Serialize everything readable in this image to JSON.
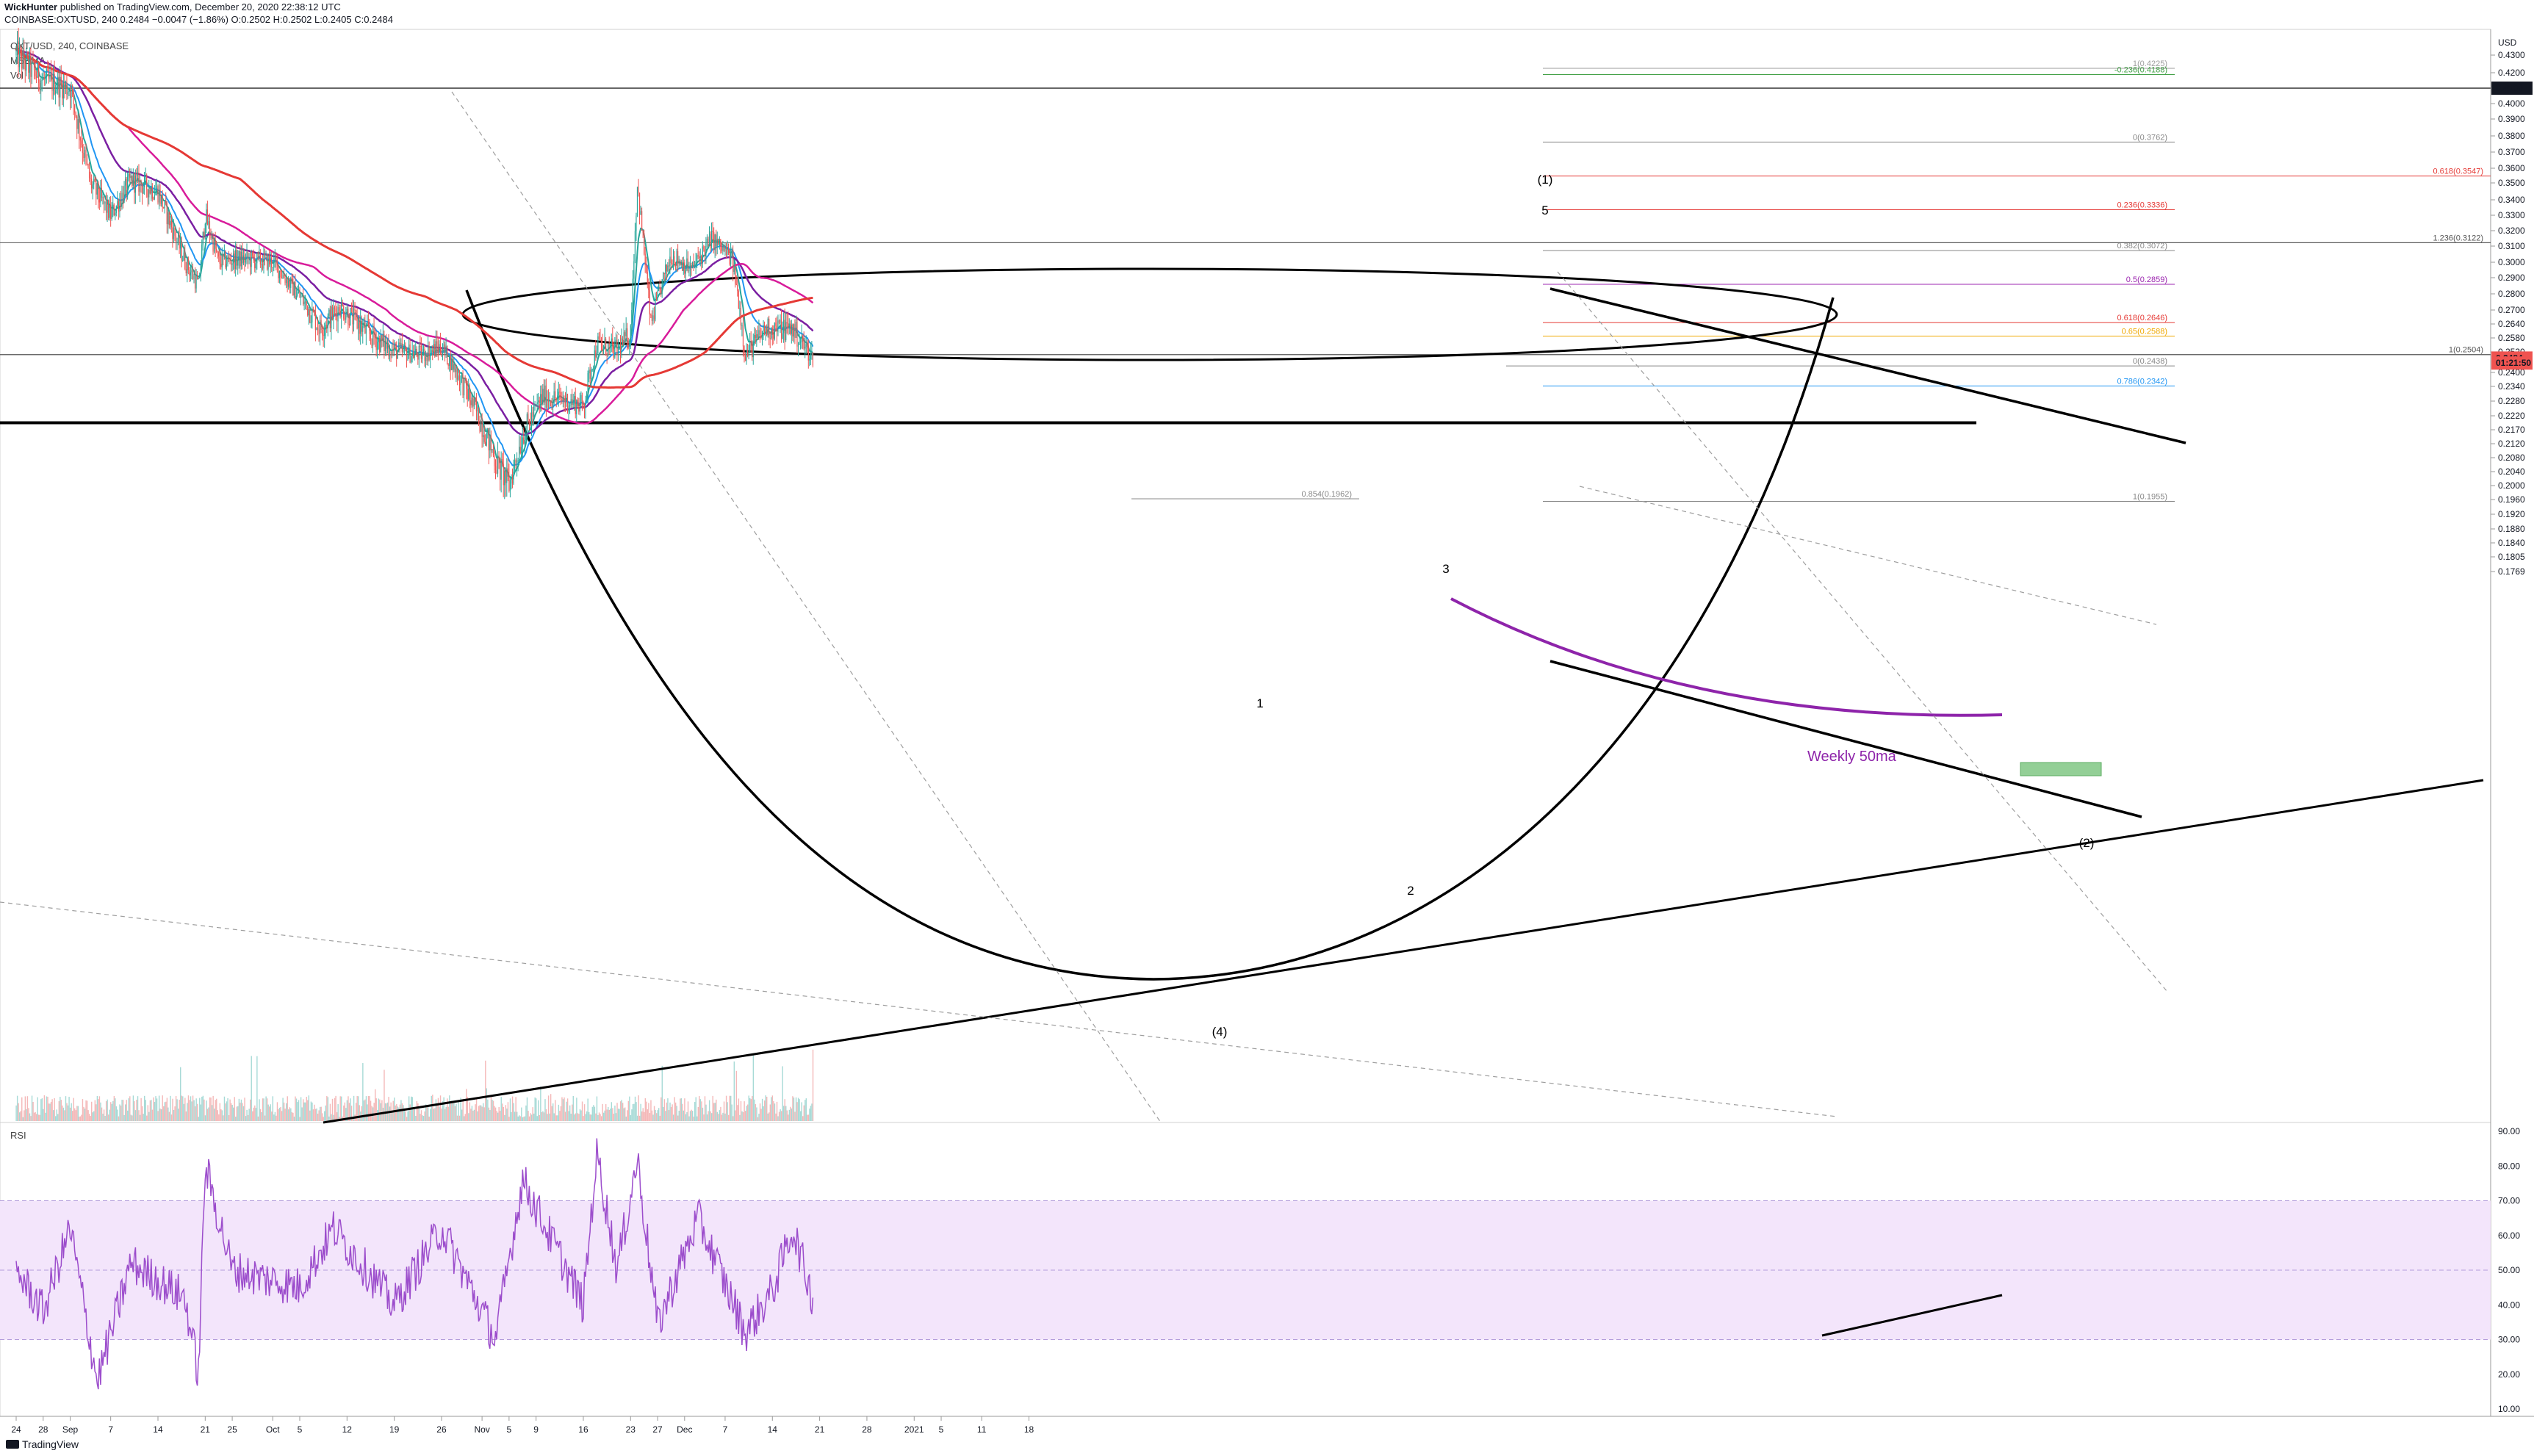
{
  "header": {
    "publisher": "WickHunter",
    "published_text": "published on TradingView.com, December 20, 2020 22:38:12 UTC",
    "symbol_line": "COINBASE:OXTUSD, 240  0.2484  −0.0047 (−1.86%)  O:0.2502  H:0.2502  L:0.2405  C:0.2484",
    "legend_1": "OXT/USD, 240, COINBASE",
    "legend_2": "MSEMA",
    "legend_3": "Vol",
    "rsi_label": "RSI",
    "brand": "TradingView"
  },
  "colors": {
    "up": "#26a69a",
    "down": "#ef5350",
    "ema_fast": "#2196f3",
    "ema_slow": "#7b1fa2",
    "ma_red": "#e53935",
    "ma_magenta": "#d81b9a",
    "rsi": "#9c4dcc",
    "rsi_band": "#f3e5fb",
    "annotation_purple": "#8e24aa",
    "fib_red": "#e53935",
    "fib_orange": "#f0a800",
    "fib_purple": "#9c27b0",
    "fib_gray": "#888888",
    "fib_green": "#43a047",
    "fib_blue": "#2196f3"
  },
  "chart_data": [
    {
      "type": "candlestick",
      "title": "OXT/USD, 240, COINBASE",
      "price_axis_label": "USD",
      "price_ticks": [
        "0.4300",
        "0.4200",
        "0.4000",
        "0.3900",
        "0.3800",
        "0.3700",
        "0.3600",
        "0.3500",
        "0.3400",
        "0.3300",
        "0.3200",
        "0.3100",
        "0.3000",
        "0.2900",
        "0.2800",
        "0.2700",
        "0.2640",
        "0.2580",
        "0.2520",
        "0.2400",
        "0.2340",
        "0.2280",
        "0.2220",
        "0.2170",
        "0.2120",
        "0.2080",
        "0.2040",
        "0.2000",
        "0.1960",
        "0.1920",
        "0.1880",
        "0.1840",
        "0.1805",
        "0.1769"
      ],
      "price_ticks_numeric": [
        0.43,
        0.42,
        0.4,
        0.39,
        0.38,
        0.37,
        0.36,
        0.35,
        0.34,
        0.33,
        0.32,
        0.31,
        0.3,
        0.29,
        0.28,
        0.27,
        0.264,
        0.258,
        0.252,
        0.24,
        0.234,
        0.228,
        0.222,
        0.217,
        0.212,
        0.208,
        0.204,
        0.2,
        0.196,
        0.192,
        0.188,
        0.184,
        0.1805,
        0.1769
      ],
      "price_badges": [
        {
          "text": "0.4100",
          "value": 0.41,
          "style": "dark"
        },
        {
          "text": "0.2484",
          "value": 0.2484,
          "style": "red"
        },
        {
          "text": "01:21:50",
          "value": 0.2455,
          "style": "red"
        }
      ],
      "x_ticks": [
        "24",
        "28",
        "Sep",
        "7",
        "14",
        "21",
        "25",
        "Oct",
        "5",
        "12",
        "19",
        "26",
        "Nov",
        "5",
        "9",
        "16",
        "23",
        "27",
        "Dec",
        "7",
        "14",
        "21",
        "28",
        "2021",
        "5",
        "11",
        "18"
      ],
      "approx_close_path": [
        {
          "date": "2020-08-24",
          "close": 0.43
        },
        {
          "date": "2020-08-28",
          "close": 0.415
        },
        {
          "date": "2020-09-01",
          "close": 0.41
        },
        {
          "date": "2020-09-04",
          "close": 0.35
        },
        {
          "date": "2020-09-07",
          "close": 0.33
        },
        {
          "date": "2020-09-10",
          "close": 0.352
        },
        {
          "date": "2020-09-14",
          "close": 0.345
        },
        {
          "date": "2020-09-18",
          "close": 0.3
        },
        {
          "date": "2020-09-20",
          "close": 0.285
        },
        {
          "date": "2020-09-21",
          "close": 0.33
        },
        {
          "date": "2020-09-23",
          "close": 0.3
        },
        {
          "date": "2020-09-26",
          "close": 0.302
        },
        {
          "date": "2020-10-01",
          "close": 0.3
        },
        {
          "date": "2020-10-05",
          "close": 0.278
        },
        {
          "date": "2020-10-08",
          "close": 0.262
        },
        {
          "date": "2020-10-11",
          "close": 0.272
        },
        {
          "date": "2020-10-15",
          "close": 0.26
        },
        {
          "date": "2020-10-19",
          "close": 0.252
        },
        {
          "date": "2020-10-23",
          "close": 0.25
        },
        {
          "date": "2020-10-26",
          "close": 0.254
        },
        {
          "date": "2020-10-30",
          "close": 0.23
        },
        {
          "date": "2020-11-03",
          "close": 0.207
        },
        {
          "date": "2020-11-05",
          "close": 0.2
        },
        {
          "date": "2020-11-07",
          "close": 0.215
        },
        {
          "date": "2020-11-10",
          "close": 0.23
        },
        {
          "date": "2020-11-14",
          "close": 0.228
        },
        {
          "date": "2020-11-16",
          "close": 0.226
        },
        {
          "date": "2020-11-18",
          "close": 0.255
        },
        {
          "date": "2020-11-21",
          "close": 0.252
        },
        {
          "date": "2020-11-23",
          "close": 0.26
        },
        {
          "date": "2020-11-24",
          "close": 0.35
        },
        {
          "date": "2020-11-26",
          "close": 0.263
        },
        {
          "date": "2020-11-29",
          "close": 0.305
        },
        {
          "date": "2020-12-02",
          "close": 0.295
        },
        {
          "date": "2020-12-05",
          "close": 0.315
        },
        {
          "date": "2020-12-08",
          "close": 0.302
        },
        {
          "date": "2020-12-10",
          "close": 0.25
        },
        {
          "date": "2020-12-13",
          "close": 0.262
        },
        {
          "date": "2020-12-17",
          "close": 0.262
        },
        {
          "date": "2020-12-20",
          "close": 0.2484
        }
      ],
      "fib_levels": [
        {
          "label": "1(0.4225)",
          "value": 0.4225,
          "color": "#9e9e9e"
        },
        {
          "label": "-0.236(0.4188)",
          "value": 0.4188,
          "color": "#43a047"
        },
        {
          "label": "0(0.3762)",
          "value": 0.3762,
          "color": "#888888"
        },
        {
          "label": "0.618(0.3547)",
          "value": 0.3547,
          "color": "#e53935"
        },
        {
          "label": "0.236(0.3336)",
          "value": 0.3336,
          "color": "#e53935"
        },
        {
          "label": "1.236(0.3122)",
          "value": 0.3122,
          "color": "#555555"
        },
        {
          "label": "0.382(0.3072)",
          "value": 0.3072,
          "color": "#888888"
        },
        {
          "label": "0.5(0.2859)",
          "value": 0.2859,
          "color": "#9c27b0"
        },
        {
          "label": "0.618(0.2646)",
          "value": 0.2646,
          "color": "#e53935"
        },
        {
          "label": "0.65(0.2588)",
          "value": 0.2588,
          "color": "#f0a800"
        },
        {
          "label": "1(0.2504)",
          "value": 0.2504,
          "color": "#555555"
        },
        {
          "label": "0(0.2438)",
          "value": 0.2438,
          "color": "#888888"
        },
        {
          "label": "0.786(0.2342)",
          "value": 0.2342,
          "color": "#2196f3"
        },
        {
          "label": "0.854(0.1962)",
          "value": 0.1962,
          "color": "#888888"
        },
        {
          "label": "1(0.1955)",
          "value": 0.1955,
          "color": "#888888"
        }
      ],
      "annotations": {
        "wave_labels": [
          "1",
          "2",
          "3",
          "(1)",
          "5",
          "(2)",
          "(4)"
        ],
        "weekly_label": "Weekly 50ma",
        "horizontal_levels": [
          0.41,
          0.3122,
          0.2504,
          0.2195
        ]
      }
    },
    {
      "type": "line",
      "title": "RSI",
      "ticks": [
        "90.00",
        "80.00",
        "70.00",
        "60.00",
        "50.00",
        "40.00",
        "30.00",
        "20.00",
        "10.00"
      ],
      "band": [
        30,
        70
      ],
      "approx_values": [
        {
          "date": "2020-08-24",
          "rsi": 50
        },
        {
          "date": "2020-08-28",
          "rsi": 38
        },
        {
          "date": "2020-09-01",
          "rsi": 62
        },
        {
          "date": "2020-09-05",
          "rsi": 18
        },
        {
          "date": "2020-09-10",
          "rsi": 52
        },
        {
          "date": "2020-09-18",
          "rsi": 42
        },
        {
          "date": "2020-09-20",
          "rsi": 20
        },
        {
          "date": "2020-09-21",
          "rsi": 80
        },
        {
          "date": "2020-09-25",
          "rsi": 50
        },
        {
          "date": "2020-10-05",
          "rsi": 45
        },
        {
          "date": "2020-10-10",
          "rsi": 62
        },
        {
          "date": "2020-10-19",
          "rsi": 40
        },
        {
          "date": "2020-10-26",
          "rsi": 62
        },
        {
          "date": "2020-11-03",
          "rsi": 30
        },
        {
          "date": "2020-11-07",
          "rsi": 76
        },
        {
          "date": "2020-11-16",
          "rsi": 40
        },
        {
          "date": "2020-11-18",
          "rsi": 84
        },
        {
          "date": "2020-11-21",
          "rsi": 50
        },
        {
          "date": "2020-11-24",
          "rsi": 82
        },
        {
          "date": "2020-11-27",
          "rsi": 34
        },
        {
          "date": "2020-12-03",
          "rsi": 65
        },
        {
          "date": "2020-12-10",
          "rsi": 32
        },
        {
          "date": "2020-12-14",
          "rsi": 44
        },
        {
          "date": "2020-12-17",
          "rsi": 62
        },
        {
          "date": "2020-12-20",
          "rsi": 42
        }
      ]
    }
  ]
}
